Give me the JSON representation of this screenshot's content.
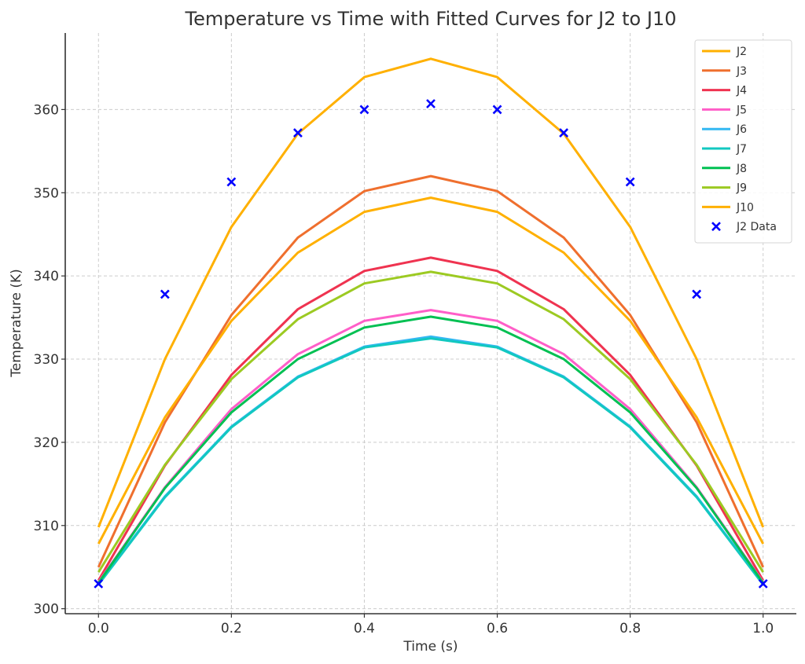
{
  "chart_data": {
    "type": "line",
    "title": "Temperature vs Time with Fitted Curves for J2 to J10",
    "xlabel": "Time (s)",
    "ylabel": "Temperature (K)",
    "xlim": [
      -0.05,
      1.05
    ],
    "ylim": [
      299.4,
      369.2
    ],
    "xticks": [
      0.0,
      0.2,
      0.4,
      0.6,
      0.8,
      1.0
    ],
    "xtick_labels": [
      "0.0",
      "0.2",
      "0.4",
      "0.6",
      "0.8",
      "1.0"
    ],
    "yticks": [
      300,
      310,
      320,
      330,
      340,
      350,
      360
    ],
    "ytick_labels": [
      "300",
      "310",
      "320",
      "330",
      "340",
      "350",
      "360"
    ],
    "grid": true,
    "legend_position": "top-right",
    "x": [
      0.0,
      0.1,
      0.2,
      0.3,
      0.4,
      0.5,
      0.6,
      0.7,
      0.8,
      0.9,
      1.0
    ],
    "series": [
      {
        "name": "J2",
        "color": "#ffb000",
        "values": [
          309.8,
          330.0,
          345.9,
          357.1,
          363.9,
          366.1,
          363.9,
          357.1,
          345.9,
          330.0,
          309.8
        ]
      },
      {
        "name": "J3",
        "color": "#ef6f2e",
        "values": [
          305.0,
          322.4,
          335.3,
          344.6,
          350.2,
          352.0,
          350.2,
          344.6,
          335.3,
          322.4,
          305.0
        ]
      },
      {
        "name": "J4",
        "color": "#ef3350",
        "values": [
          303.4,
          317.2,
          328.1,
          336.0,
          340.6,
          342.2,
          340.6,
          336.0,
          328.1,
          317.2,
          303.4
        ]
      },
      {
        "name": "J5",
        "color": "#ff5ec8",
        "values": [
          303.2,
          314.6,
          324.0,
          330.6,
          334.6,
          335.9,
          334.6,
          330.6,
          324.0,
          314.6,
          303.2
        ]
      },
      {
        "name": "J6",
        "color": "#33b8f2",
        "values": [
          303.0,
          313.5,
          321.9,
          327.9,
          331.5,
          332.7,
          331.5,
          327.9,
          321.9,
          313.5,
          303.0
        ]
      },
      {
        "name": "J7",
        "color": "#12c8c0",
        "values": [
          302.9,
          313.4,
          321.8,
          327.8,
          331.4,
          332.5,
          331.4,
          327.8,
          321.8,
          313.4,
          302.9
        ]
      },
      {
        "name": "J8",
        "color": "#00c052",
        "values": [
          303.1,
          314.5,
          323.6,
          330.0,
          333.8,
          335.1,
          333.8,
          330.0,
          323.6,
          314.5,
          303.1
        ]
      },
      {
        "name": "J9",
        "color": "#9cca22",
        "values": [
          304.4,
          317.3,
          327.6,
          334.8,
          339.1,
          340.5,
          339.1,
          334.8,
          327.6,
          317.3,
          304.4
        ]
      },
      {
        "name": "J10",
        "color": "#ffb000",
        "values": [
          307.8,
          323.0,
          334.6,
          342.8,
          347.7,
          349.4,
          347.7,
          342.8,
          334.6,
          323.0,
          307.8
        ]
      }
    ],
    "scatter": {
      "name": "J2 Data",
      "color": "#0000ff",
      "marker": "x",
      "values": [
        303.0,
        337.8,
        351.3,
        357.2,
        360.0,
        360.7,
        360.0,
        357.2,
        351.3,
        337.8,
        303.0
      ]
    }
  }
}
